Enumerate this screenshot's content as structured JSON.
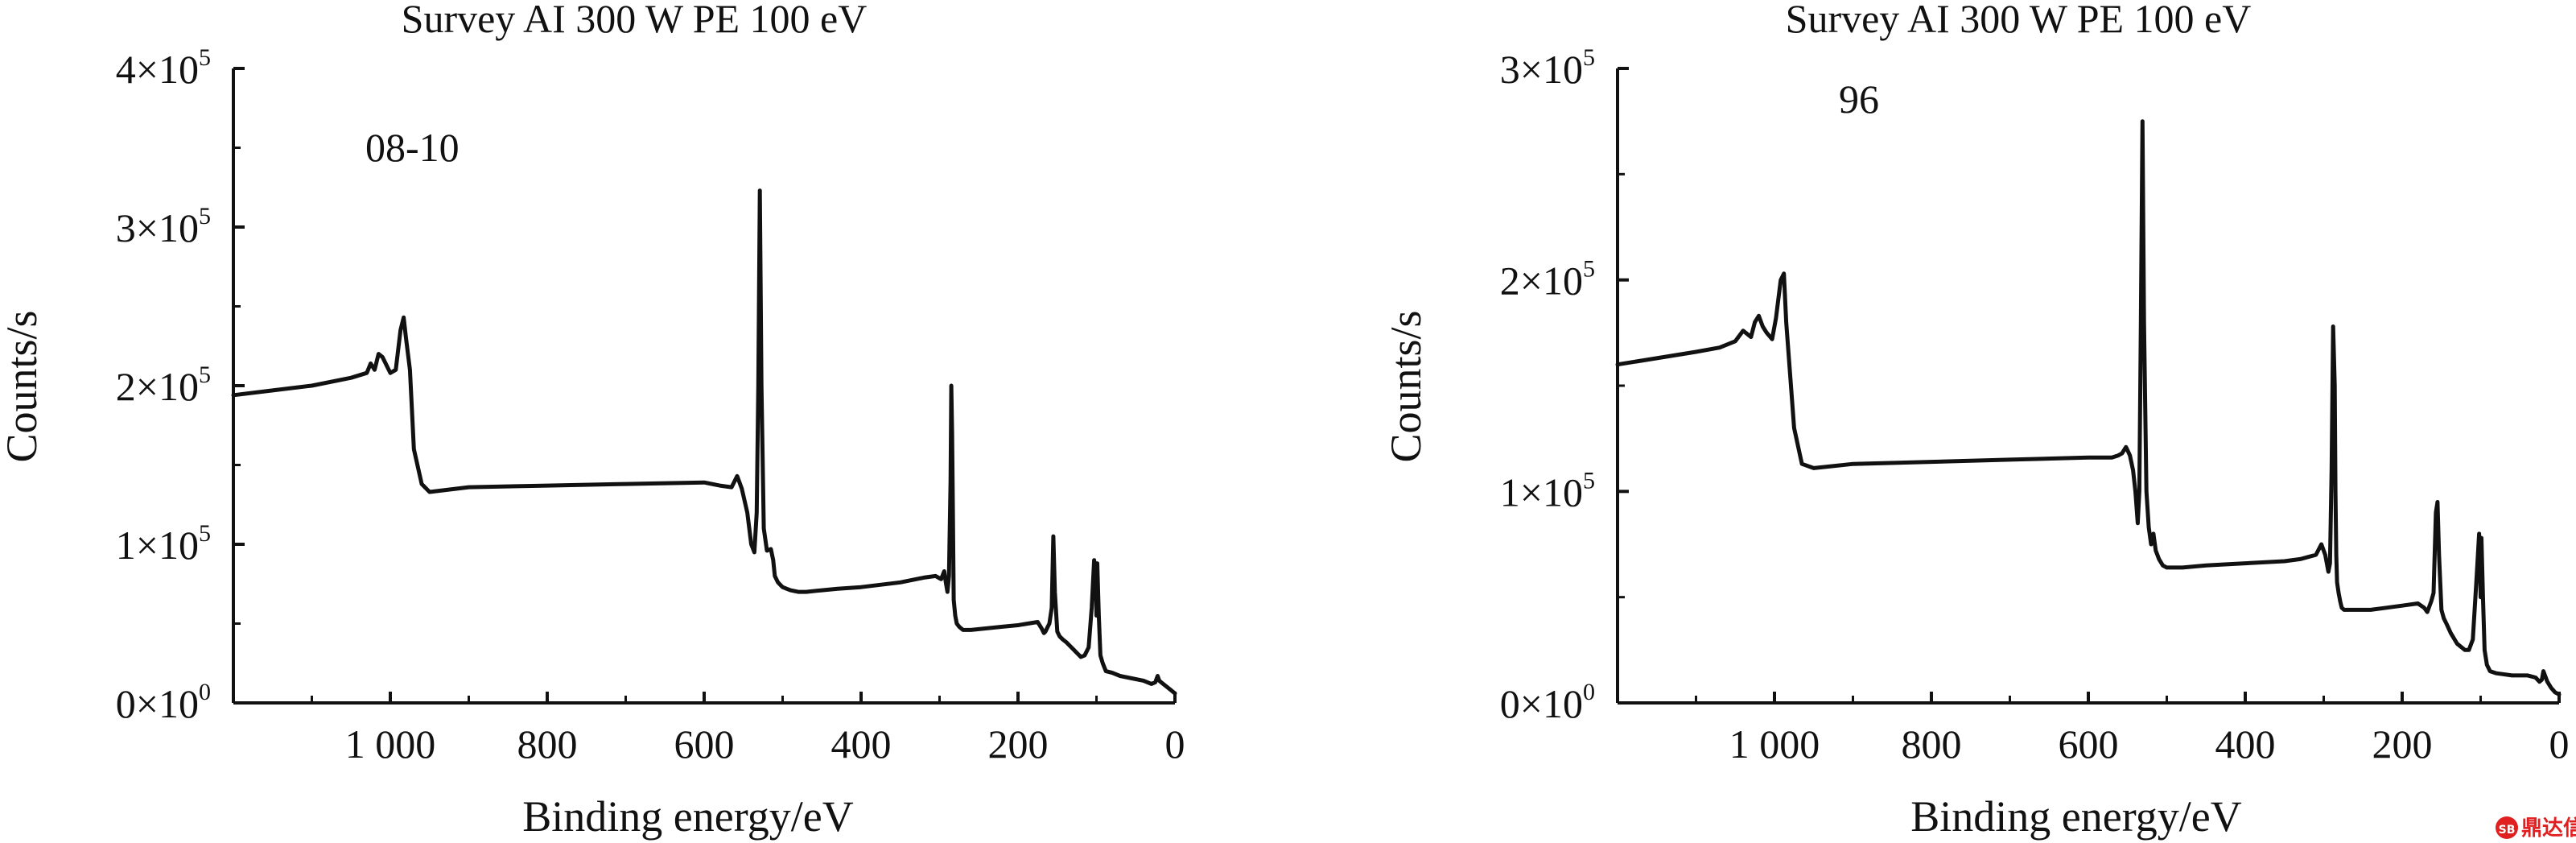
{
  "chart_data": [
    {
      "type": "line",
      "title": "Survey AI 300 W PE 100 eV",
      "annotation": "08-10",
      "xlabel": "Binding energy/eV",
      "ylabel": "Counts/s",
      "xlim": [
        1200,
        0
      ],
      "xticks": [
        1000,
        800,
        600,
        400,
        200,
        0
      ],
      "xtick_labels": [
        "1 000",
        "800",
        "600",
        "400",
        "200",
        "0"
      ],
      "ylim": [
        0,
        400000
      ],
      "yticks": [
        0,
        100000,
        200000,
        300000,
        400000
      ],
      "ytick_labels": [
        {
          "mant": "0",
          "exp": "0"
        },
        {
          "mant": "1",
          "exp": "5"
        },
        {
          "mant": "2",
          "exp": "5"
        },
        {
          "mant": "3",
          "exp": "5"
        },
        {
          "mant": "4",
          "exp": "5"
        }
      ],
      "grid": false,
      "series": [
        {
          "x": [
            1200,
            1150,
            1100,
            1050,
            1030,
            1025,
            1020,
            1015,
            1010,
            1000,
            993,
            987,
            983,
            980,
            975,
            970,
            960,
            950,
            900,
            800,
            700,
            600,
            580,
            565,
            558,
            552,
            545,
            540,
            536,
            533,
            531,
            529,
            527,
            524,
            520,
            515,
            512,
            510,
            506,
            502,
            500,
            495,
            490,
            480,
            470,
            450,
            430,
            400,
            350,
            320,
            305,
            298,
            294,
            292,
            290,
            288,
            286,
            285,
            284,
            283,
            282,
            280,
            278,
            275,
            270,
            260,
            240,
            220,
            200,
            175,
            170,
            167,
            165,
            162,
            160,
            157,
            155,
            153,
            150,
            147,
            143,
            138,
            130,
            120,
            115,
            110,
            106,
            103,
            101,
            100,
            99,
            97,
            95,
            92,
            88,
            80,
            70,
            60,
            40,
            30,
            25,
            22,
            20,
            15,
            10,
            5,
            0
          ],
          "y": [
            194000,
            197000,
            200000,
            205000,
            208000,
            214000,
            210000,
            220000,
            218000,
            208000,
            210000,
            235000,
            243000,
            230000,
            210000,
            160000,
            138000,
            133000,
            136000,
            137000,
            138000,
            139000,
            137000,
            136000,
            143000,
            135000,
            120000,
            100000,
            95000,
            120000,
            200000,
            323000,
            200000,
            110000,
            96000,
            97000,
            90000,
            80000,
            76000,
            74000,
            73000,
            72000,
            71000,
            70000,
            70000,
            71000,
            72000,
            73000,
            76000,
            79000,
            80000,
            78000,
            83000,
            76000,
            70000,
            80000,
            140000,
            200000,
            170000,
            120000,
            65000,
            55000,
            50000,
            48000,
            46000,
            46000,
            47000,
            48000,
            49000,
            51000,
            47000,
            44000,
            45000,
            48000,
            50000,
            60000,
            105000,
            70000,
            45000,
            42000,
            40000,
            38000,
            34000,
            29000,
            30000,
            35000,
            60000,
            90000,
            80000,
            55000,
            88000,
            55000,
            30000,
            25000,
            20000,
            19000,
            17000,
            16000,
            14000,
            12000,
            13000,
            17000,
            14000,
            12000,
            10000,
            8000,
            6000
          ]
        }
      ]
    },
    {
      "type": "line",
      "title": "Survey AI 300 W PE 100 eV",
      "annotation": "96",
      "xlabel": "Binding energy/eV",
      "ylabel": "Counts/s",
      "xlim": [
        1200,
        0
      ],
      "xticks": [
        1000,
        800,
        600,
        400,
        200,
        0
      ],
      "xtick_labels": [
        "1 000",
        "800",
        "600",
        "400",
        "200",
        "0"
      ],
      "ylim": [
        0,
        300000
      ],
      "yticks": [
        0,
        100000,
        200000,
        300000
      ],
      "ytick_labels": [
        {
          "mant": "0",
          "exp": "0"
        },
        {
          "mant": "1",
          "exp": "5"
        },
        {
          "mant": "2",
          "exp": "5"
        },
        {
          "mant": "3",
          "exp": "5"
        }
      ],
      "grid": false,
      "series": [
        {
          "x": [
            1200,
            1150,
            1100,
            1070,
            1050,
            1040,
            1030,
            1025,
            1020,
            1015,
            1010,
            1003,
            998,
            992,
            988,
            985,
            980,
            975,
            965,
            950,
            900,
            800,
            700,
            600,
            570,
            562,
            557,
            552,
            547,
            543,
            540,
            537,
            535,
            533,
            531,
            529,
            526,
            523,
            520,
            517,
            514,
            510,
            505,
            500,
            480,
            450,
            400,
            350,
            330,
            310,
            303,
            298,
            294,
            292,
            290,
            288,
            286,
            285,
            284,
            283,
            281,
            279,
            277,
            274,
            270,
            260,
            240,
            220,
            200,
            180,
            172,
            168,
            165,
            163,
            160,
            157,
            155,
            153,
            150,
            147,
            143,
            138,
            130,
            120,
            115,
            110,
            105,
            102,
            101,
            100,
            99,
            97,
            95,
            92,
            88,
            80,
            60,
            40,
            30,
            25,
            22,
            20,
            15,
            10,
            5,
            0
          ],
          "y": [
            160000,
            163000,
            166000,
            168000,
            171000,
            176000,
            173000,
            180000,
            183000,
            178000,
            175000,
            172000,
            182000,
            200000,
            203000,
            180000,
            155000,
            130000,
            113000,
            111000,
            113000,
            114000,
            115000,
            116000,
            116000,
            117000,
            118000,
            121000,
            117000,
            110000,
            100000,
            85000,
            100000,
            180000,
            275000,
            180000,
            100000,
            83000,
            75000,
            80000,
            72000,
            68000,
            65000,
            64000,
            64000,
            65000,
            66000,
            67000,
            68000,
            70000,
            75000,
            70000,
            62000,
            66000,
            110000,
            178000,
            150000,
            100000,
            70000,
            57000,
            52000,
            48000,
            45000,
            44000,
            44000,
            44000,
            44000,
            45000,
            46000,
            47000,
            45000,
            43000,
            46000,
            48000,
            52000,
            90000,
            95000,
            70000,
            44000,
            40000,
            37000,
            33000,
            28000,
            25000,
            25000,
            30000,
            60000,
            80000,
            70000,
            50000,
            78000,
            50000,
            25000,
            18000,
            15000,
            14000,
            13000,
            13000,
            12000,
            10000,
            11000,
            15000,
            10000,
            7000,
            5000,
            4000
          ]
        }
      ]
    }
  ],
  "watermark": {
    "text": "鼎达信",
    "badge": "SB"
  }
}
